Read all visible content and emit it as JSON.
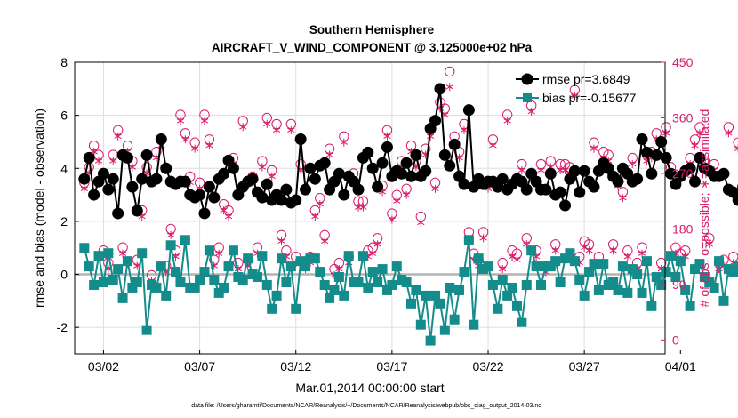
{
  "chart_data": {
    "type": "line",
    "title": "Southern Hemisphere",
    "subtitle": "AIRCRAFT_V_WIND_COMPONENT @ 3.125000e+02 hPa",
    "xlabel": "Mar.01,2014 00:00:00 start",
    "ylabel": "rmse and bias (model - observation)",
    "ylabel_right": "# of obs: o=possible; ∗=assimilated",
    "footnote": "data file: /Users/gharamti/Documents/NCAR/Reanalysis/~/Documents/NCAR/Reanalysis/webpub/obs_diag_output_2014-03.nc",
    "xlim": [
      0.5,
      31.2
    ],
    "ylim": [
      -3,
      8
    ],
    "ylim_right": [
      -22.5,
      450
    ],
    "x_ticks": [
      2,
      7,
      12,
      17,
      22,
      27,
      32
    ],
    "x_tick_labels": [
      "03/02",
      "03/07",
      "03/12",
      "03/17",
      "03/22",
      "03/27",
      "04/01"
    ],
    "y_ticks": [
      -2,
      0,
      2,
      4,
      6,
      8
    ],
    "y_tick_labels": [
      "-2",
      "0",
      "2",
      "4",
      "6",
      "8"
    ],
    "y_ticks_right": [
      0,
      90,
      180,
      270,
      360,
      450
    ],
    "y_tick_labels_right": [
      "0",
      "90",
      "180",
      "270",
      "360",
      "450"
    ],
    "grid": true,
    "zero_line": true,
    "legend_position": "top-right",
    "colors": {
      "rmse": "#000000",
      "bias": "#148c8c",
      "obs": "#d81b6a",
      "zero": "#b3b3b3",
      "grid": "#dedede"
    },
    "x_start": 1.0,
    "x_step": 0.25,
    "series": [
      {
        "name": "rmse",
        "legend": "rmse pr=3.6849",
        "values": [
          3.6,
          4.4,
          3.0,
          3.5,
          3.8,
          3.2,
          3.6,
          2.3,
          4.5,
          4.4,
          3.3,
          2.4,
          3.6,
          4.5,
          3.5,
          3.6,
          5.1,
          4.0,
          3.5,
          3.4,
          3.5,
          3.5,
          3.0,
          2.9,
          3.0,
          2.3,
          3.3,
          2.9,
          3.6,
          3.8,
          4.3,
          4.0,
          3.0,
          3.3,
          3.5,
          3.6,
          3.1,
          2.9,
          3.4,
          2.8,
          3.0,
          2.8,
          3.2,
          2.7,
          2.8,
          5.1,
          3.2,
          4.0,
          3.6,
          4.1,
          4.2,
          3.2,
          3.5,
          3.8,
          3.0,
          3.7,
          3.5,
          3.2,
          4.4,
          4.6,
          4.0,
          3.3,
          4.2,
          4.8,
          3.7,
          3.9,
          3.8,
          4.2,
          3.7,
          4.5,
          3.7,
          3.9,
          5.5,
          5.8,
          7.0,
          4.5,
          4.1,
          4.9,
          3.7,
          3.4,
          6.2,
          3.3,
          3.6,
          3.4,
          3.5,
          3.5,
          3.3,
          3.6,
          3.2,
          3.4,
          3.6,
          3.5,
          3.2,
          3.8,
          3.5,
          3.2,
          3.2,
          3.8,
          3.0,
          3.1,
          2.6,
          3.6,
          3.9,
          3.1,
          3.9,
          3.5,
          3.3,
          3.9,
          4.2,
          4.0,
          3.7,
          3.5,
          4.0,
          3.8,
          3.5,
          3.6,
          5.1,
          4.6,
          3.8,
          4.5,
          5.0,
          4.4,
          3.8,
          3.4,
          3.7,
          3.9,
          4.0,
          3.5,
          4.4,
          4.0,
          3.9,
          3.7,
          3.7,
          3.8,
          3.2,
          3.1,
          2.8,
          3.3,
          2.8,
          2.9,
          3.4,
          3.6,
          3.0,
          3.5,
          3.4,
          3.3,
          3.2,
          3.4,
          3.1,
          3.8
        ]
      },
      {
        "name": "bias",
        "legend": "bias pr=-0.15677",
        "values": [
          1.0,
          0.3,
          -0.4,
          0.7,
          -0.3,
          0.8,
          -0.2,
          0.2,
          -0.9,
          0.5,
          -0.5,
          -0.3,
          0.8,
          -2.1,
          -0.4,
          -0.5,
          0.3,
          -0.8,
          1.1,
          0.1,
          -0.3,
          1.3,
          -0.5,
          -0.5,
          -0.2,
          0.1,
          0.9,
          -0.2,
          -0.7,
          -0.5,
          0.3,
          0.9,
          -0.1,
          -0.2,
          0.6,
          0.0,
          -0.1,
          0.7,
          -0.4,
          -1.3,
          -0.8,
          0.6,
          -0.3,
          0.3,
          -1.3,
          0.5,
          0.3,
          0.6,
          0.6,
          0.1,
          -0.4,
          -0.9,
          -0.6,
          -0.1,
          -0.8,
          0.7,
          -0.3,
          -0.3,
          0.7,
          -0.5,
          0.1,
          -0.3,
          0.2,
          -0.6,
          -0.4,
          0.3,
          -0.2,
          -0.3,
          -1.1,
          -0.6,
          -1.9,
          -0.8,
          -2.5,
          -0.8,
          -1.1,
          -2.1,
          -0.5,
          -1.7,
          -0.6,
          0.1,
          1.3,
          -1.9,
          0.6,
          0.2,
          0.3,
          -0.4,
          -1.3,
          -0.2,
          -0.8,
          -0.5,
          -1.2,
          -1.8,
          -0.4,
          0.9,
          0.3,
          -0.4,
          0.3,
          0.3,
          0.5,
          -0.3,
          0.6,
          0.8,
          0.5,
          -0.2,
          -0.8,
          0.1,
          0.4,
          -0.6,
          0.4,
          -0.4,
          -0.3,
          -0.6,
          0.3,
          -0.7,
          0.2,
          0.0,
          -0.7,
          0.5,
          -1.2,
          -0.1,
          -0.4,
          0.1,
          0.7,
          -0.1,
          0.5,
          -0.6,
          -1.2,
          0.2,
          0.4,
          -0.1,
          -0.3,
          -0.5,
          0.5,
          -1.0,
          0.2,
          0.1,
          0.3,
          0.5,
          -0.1,
          0.4,
          -0.3,
          0.4,
          0.2,
          0.1,
          -0.3,
          0.5,
          0.8,
          -0.3,
          0.6,
          -0.4,
          0.1,
          -0.2,
          -0.1
        ]
      },
      {
        "name": "obs_possible",
        "axis": "right",
        "values": [
          255,
          280,
          315,
          300,
          145,
          125,
          300,
          340,
          150,
          315,
          290,
          130,
          210,
          280,
          105,
          305,
          325,
          120,
          180,
          145,
          365,
          335,
          265,
          320,
          255,
          365,
          325,
          130,
          150,
          220,
          210,
          295,
          125,
          355,
          130,
          265,
          150,
          290,
          360,
          275,
          350,
          170,
          145,
          350,
          135,
          285,
          125,
          135,
          210,
          230,
          170,
          310,
          115,
          125,
          330,
          135,
          270,
          225,
          225,
          145,
          150,
          165,
          250,
          340,
          205,
          235,
          290,
          245,
          315,
          290,
          200,
          310,
          340,
          255,
          385,
          375,
          435,
          330,
          305,
          350,
          175,
          140,
          130,
          175,
          255,
          325,
          255,
          125,
          365,
          145,
          140,
          285,
          165,
          380,
          145,
          285,
          120,
          290,
          155,
          285,
          285,
          280,
          405,
          135,
          160,
          155,
          320,
          135,
          305,
          300,
          155,
          260,
          240,
          145,
          295,
          125,
          150,
          300,
          305,
          335,
          125,
          345,
          280,
          150,
          140,
          145,
          295,
          325,
          345,
          290,
          165,
          285,
          125,
          130,
          345,
          135,
          320,
          175,
          345,
          260,
          150,
          375,
          130,
          310,
          155,
          310,
          310,
          320,
          0,
          150
        ]
      },
      {
        "name": "obs_assimilated",
        "axis": "right",
        "values": [
          245,
          270,
          305,
          290,
          135,
          115,
          290,
          330,
          140,
          305,
          280,
          120,
          200,
          270,
          95,
          295,
          315,
          110,
          170,
          135,
          355,
          325,
          255,
          310,
          245,
          355,
          315,
          120,
          140,
          210,
          200,
          285,
          115,
          345,
          120,
          255,
          140,
          280,
          350,
          265,
          340,
          160,
          135,
          340,
          125,
          275,
          115,
          125,
          200,
          220,
          160,
          300,
          105,
          115,
          320,
          125,
          260,
          215,
          215,
          135,
          140,
          155,
          240,
          330,
          195,
          225,
          280,
          235,
          305,
          280,
          190,
          300,
          330,
          245,
          375,
          365,
          410,
          320,
          295,
          340,
          165,
          130,
          120,
          165,
          245,
          315,
          245,
          115,
          355,
          135,
          130,
          275,
          155,
          370,
          135,
          275,
          110,
          280,
          145,
          275,
          275,
          270,
          395,
          125,
          150,
          145,
          310,
          125,
          295,
          290,
          145,
          250,
          230,
          135,
          285,
          115,
          140,
          290,
          295,
          325,
          115,
          335,
          270,
          140,
          130,
          135,
          285,
          315,
          335,
          280,
          155,
          275,
          115,
          120,
          335,
          125,
          310,
          165,
          335,
          250,
          140,
          365,
          120,
          300,
          145,
          300,
          300,
          310,
          0,
          140
        ]
      }
    ]
  }
}
